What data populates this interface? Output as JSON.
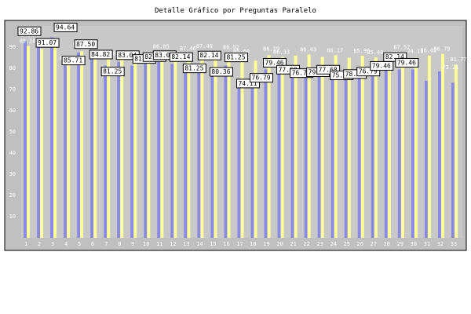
{
  "chart_data": {
    "type": "bar",
    "title": "Detalle Gráfico por Preguntas Paralelo",
    "xlabel": "",
    "ylabel": "",
    "ylim": [
      0,
      100
    ],
    "yticks": [
      10,
      20,
      30,
      40,
      50,
      60,
      70,
      80,
      90
    ],
    "grid": false,
    "legend": "none",
    "categories": [
      "1",
      "2",
      "3",
      "4",
      "5",
      "6",
      "7",
      "8",
      "9",
      "10",
      "11",
      "12",
      "13",
      "14",
      "15",
      "16",
      "17",
      "18",
      "19",
      "20",
      "21",
      "22",
      "23",
      "24",
      "25",
      "26",
      "27",
      "28",
      "29",
      "30",
      "31",
      "32",
      "33"
    ],
    "series": [
      {
        "color": "#8a8ae6",
        "values": [
          92.86,
          91.07,
          94.64,
          85.71,
          87.5,
          84.82,
          81.25,
          83.04,
          81.25,
          82.14,
          83.04,
          82.14,
          81.25,
          82.14,
          80.36,
          81.25,
          74.11,
          76.79,
          79.46,
          77.68,
          76.79,
          79.46,
          77.68,
          75.0,
          78.57,
          76.79,
          79.46,
          82.14,
          79.46,
          79.46,
          74.11,
          78.57,
          73.21
        ]
      },
      {
        "color": "#ffff99",
        "values": [
          90.5,
          89.2,
          90.1,
          82.4,
          88.0,
          87.5,
          84.6,
          87.68,
          83.0,
          87.04,
          88.0,
          87.8,
          87.04,
          87.46,
          85.4,
          86.92,
          85.6,
          83.6,
          86.19,
          85.4,
          86.0,
          86.43,
          85.4,
          86.17,
          85.0,
          85.99,
          85.2,
          86.0,
          87.57,
          85.0,
          86.02,
          86.79,
          81.77
        ]
      }
    ],
    "boxed_labels": [
      "92.86",
      "91.07",
      "94.64",
      "85.71",
      "87.50",
      "84.82",
      "81.25",
      "83.04",
      "81.25",
      "82.14",
      "83.04",
      "82.14",
      "81.25",
      "82.14",
      "80.36",
      "81.25",
      "74.11",
      "76.79",
      "79.46",
      "77.68",
      "76.79",
      "79.46",
      "77.68",
      "75.00",
      "78.57",
      "76.79",
      "79.46",
      "82.14",
      "79.46"
    ],
    "faint_labels": [
      "88.10",
      "84.19",
      "91.50",
      "87.68",
      "87.04",
      "86.05",
      "87.46",
      "87.46",
      "86.92",
      "85.60",
      "86.19",
      "86.33",
      "86.43",
      "86.17",
      "85.99",
      "85.40",
      "87.57",
      "74.11",
      "86.02",
      "86.79",
      "73.21",
      "81.77"
    ]
  }
}
